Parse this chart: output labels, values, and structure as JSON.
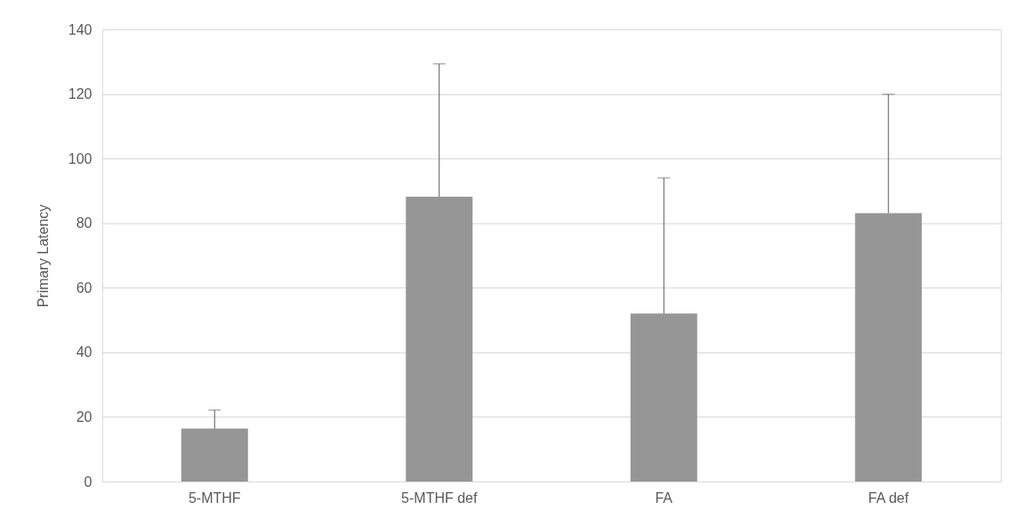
{
  "chart_data": {
    "type": "bar",
    "ylabel": "Primary Latency",
    "categories": [
      "5-MTHF",
      "5-MTHF def",
      "FA",
      "FA def"
    ],
    "values": [
      16.4,
      88.2,
      52.0,
      83.1
    ],
    "errors": [
      [
        16.4,
        22.1
      ],
      [
        88.2,
        129.3
      ],
      [
        52.0,
        94.0
      ],
      [
        83.1,
        119.9
      ]
    ],
    "color": "#969696",
    "ylim": [
      0,
      140
    ],
    "yticks": [
      0,
      20,
      40,
      60,
      80,
      100,
      120,
      140
    ],
    "grid": "y"
  }
}
